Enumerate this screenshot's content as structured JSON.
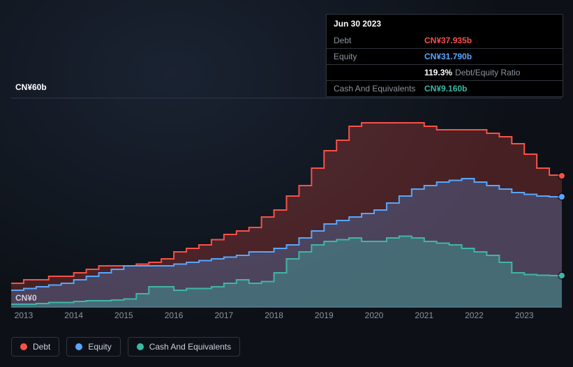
{
  "tooltip": {
    "date": "Jun 30 2023",
    "debt_label": "Debt",
    "debt_value": "CN¥37.935b",
    "equity_label": "Equity",
    "equity_value": "CN¥31.790b",
    "ratio_value": "119.3%",
    "ratio_label": "Debt/Equity Ratio",
    "cash_label": "Cash And Equivalents",
    "cash_value": "CN¥9.160b"
  },
  "chart": {
    "type": "area",
    "ylim": [
      0,
      60
    ],
    "y_top_label": "CN¥60b",
    "y_bottom_label": "CN¥0",
    "x_labels": [
      "2013",
      "2014",
      "2015",
      "2016",
      "2017",
      "2018",
      "2019",
      "2020",
      "2021",
      "2022",
      "2023"
    ],
    "x_range": [
      2012.75,
      2023.75
    ],
    "colors": {
      "debt": "#f85149",
      "equity": "#58a6ff",
      "cash": "#3fb6a8",
      "debt_fill": "rgba(248,81,73,0.25)",
      "equity_fill": "rgba(88,166,255,0.25)",
      "cash_fill": "rgba(63,182,168,0.35)",
      "grid": "#2d3748",
      "bg": "transparent"
    },
    "line_width": 2,
    "series": {
      "debt": [
        [
          2012.75,
          7
        ],
        [
          2013.0,
          8
        ],
        [
          2013.25,
          8
        ],
        [
          2013.5,
          9
        ],
        [
          2013.75,
          9
        ],
        [
          2014.0,
          10
        ],
        [
          2014.25,
          11
        ],
        [
          2014.5,
          12
        ],
        [
          2014.75,
          12
        ],
        [
          2015.0,
          12
        ],
        [
          2015.25,
          12.5
        ],
        [
          2015.5,
          13
        ],
        [
          2015.75,
          14
        ],
        [
          2016.0,
          16
        ],
        [
          2016.25,
          17
        ],
        [
          2016.5,
          18
        ],
        [
          2016.75,
          19.5
        ],
        [
          2017.0,
          21
        ],
        [
          2017.25,
          22
        ],
        [
          2017.5,
          23
        ],
        [
          2017.75,
          26
        ],
        [
          2018.0,
          28
        ],
        [
          2018.25,
          32
        ],
        [
          2018.5,
          35
        ],
        [
          2018.75,
          40
        ],
        [
          2019.0,
          45
        ],
        [
          2019.25,
          48
        ],
        [
          2019.5,
          52
        ],
        [
          2019.75,
          53
        ],
        [
          2020.0,
          53
        ],
        [
          2020.25,
          53
        ],
        [
          2020.5,
          53
        ],
        [
          2020.75,
          53
        ],
        [
          2021.0,
          52
        ],
        [
          2021.25,
          51
        ],
        [
          2021.5,
          51
        ],
        [
          2021.75,
          51
        ],
        [
          2022.0,
          51
        ],
        [
          2022.25,
          50
        ],
        [
          2022.5,
          49
        ],
        [
          2022.75,
          47
        ],
        [
          2023.0,
          44
        ],
        [
          2023.25,
          40
        ],
        [
          2023.5,
          38
        ],
        [
          2023.75,
          37.9
        ]
      ],
      "equity": [
        [
          2012.75,
          5
        ],
        [
          2013.0,
          5.5
        ],
        [
          2013.25,
          6
        ],
        [
          2013.5,
          6.5
        ],
        [
          2013.75,
          7
        ],
        [
          2014.0,
          8
        ],
        [
          2014.25,
          9
        ],
        [
          2014.5,
          10
        ],
        [
          2014.75,
          11
        ],
        [
          2015.0,
          12
        ],
        [
          2015.25,
          12
        ],
        [
          2015.5,
          12
        ],
        [
          2015.75,
          12
        ],
        [
          2016.0,
          12.5
        ],
        [
          2016.25,
          13
        ],
        [
          2016.5,
          13.5
        ],
        [
          2016.75,
          14
        ],
        [
          2017.0,
          14.5
        ],
        [
          2017.25,
          15
        ],
        [
          2017.5,
          16
        ],
        [
          2017.75,
          16
        ],
        [
          2018.0,
          17
        ],
        [
          2018.25,
          18
        ],
        [
          2018.5,
          20
        ],
        [
          2018.75,
          22
        ],
        [
          2019.0,
          24
        ],
        [
          2019.25,
          25
        ],
        [
          2019.5,
          26
        ],
        [
          2019.75,
          27
        ],
        [
          2020.0,
          28
        ],
        [
          2020.25,
          30
        ],
        [
          2020.5,
          32
        ],
        [
          2020.75,
          34
        ],
        [
          2021.0,
          35
        ],
        [
          2021.25,
          36
        ],
        [
          2021.5,
          36.5
        ],
        [
          2021.75,
          37
        ],
        [
          2022.0,
          36
        ],
        [
          2022.25,
          35
        ],
        [
          2022.5,
          34
        ],
        [
          2022.75,
          33
        ],
        [
          2023.0,
          32.5
        ],
        [
          2023.25,
          32
        ],
        [
          2023.5,
          31.8
        ],
        [
          2023.75,
          31.8
        ]
      ],
      "cash": [
        [
          2012.75,
          1
        ],
        [
          2013.0,
          1
        ],
        [
          2013.25,
          1.2
        ],
        [
          2013.5,
          1.5
        ],
        [
          2013.75,
          1.5
        ],
        [
          2014.0,
          1.8
        ],
        [
          2014.25,
          2
        ],
        [
          2014.5,
          2
        ],
        [
          2014.75,
          2.2
        ],
        [
          2015.0,
          2.5
        ],
        [
          2015.25,
          4
        ],
        [
          2015.5,
          6
        ],
        [
          2015.75,
          6
        ],
        [
          2016.0,
          5
        ],
        [
          2016.25,
          5.5
        ],
        [
          2016.5,
          5.5
        ],
        [
          2016.75,
          6
        ],
        [
          2017.0,
          7
        ],
        [
          2017.25,
          8
        ],
        [
          2017.5,
          7
        ],
        [
          2017.75,
          7.5
        ],
        [
          2018.0,
          10
        ],
        [
          2018.25,
          14
        ],
        [
          2018.5,
          16
        ],
        [
          2018.75,
          18
        ],
        [
          2019.0,
          19
        ],
        [
          2019.25,
          19.5
        ],
        [
          2019.5,
          20
        ],
        [
          2019.75,
          19
        ],
        [
          2020.0,
          19
        ],
        [
          2020.25,
          20
        ],
        [
          2020.5,
          20.5
        ],
        [
          2020.75,
          20
        ],
        [
          2021.0,
          19
        ],
        [
          2021.25,
          18.5
        ],
        [
          2021.5,
          18
        ],
        [
          2021.75,
          17
        ],
        [
          2022.0,
          16
        ],
        [
          2022.25,
          15
        ],
        [
          2022.5,
          13
        ],
        [
          2022.75,
          10
        ],
        [
          2023.0,
          9.5
        ],
        [
          2023.25,
          9.3
        ],
        [
          2023.5,
          9.2
        ],
        [
          2023.75,
          9.2
        ]
      ]
    }
  },
  "legend": {
    "debt": "Debt",
    "equity": "Equity",
    "cash": "Cash And Equivalents"
  }
}
